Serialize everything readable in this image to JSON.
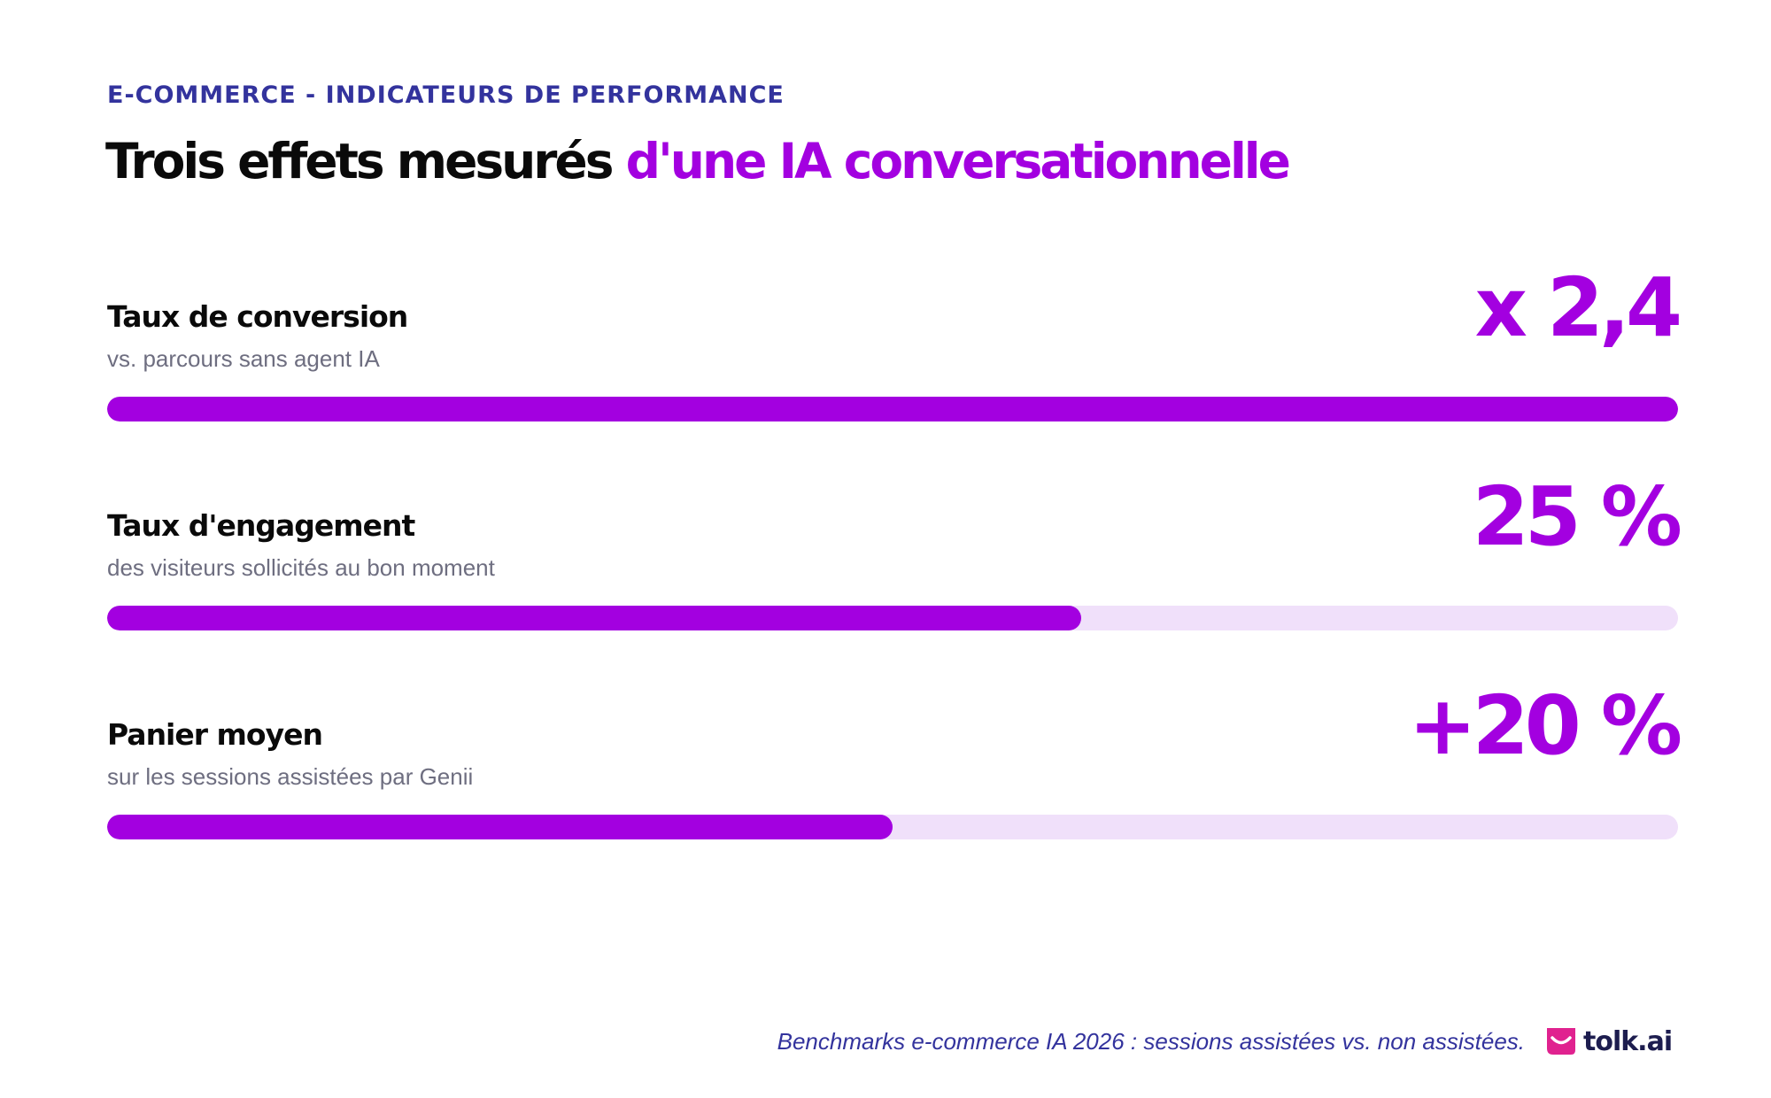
{
  "header": {
    "eyebrow": "E-COMMERCE - INDICATEURS DE PERFORMANCE",
    "title_main": "Trois effets mesurés",
    "title_accent": "d'une IA conversationnelle"
  },
  "chart_data": {
    "type": "bar",
    "orientation": "horizontal",
    "categories": [
      "Taux de conversion",
      "Taux d'engagement",
      "Panier moyen"
    ],
    "subtitles": [
      "vs. parcours sans agent IA",
      "des visiteurs sollicités au bon moment",
      "sur les sessions assistées par Genii"
    ],
    "value_labels": [
      "x 2,4",
      "25 %",
      "+20 %"
    ],
    "fill_fraction": [
      1.0,
      0.62,
      0.5
    ],
    "colors": {
      "fill": "#a300e0",
      "track": "#f0e0fa"
    },
    "grid": false,
    "legend": "none"
  },
  "footer": {
    "note": "Benchmarks e-commerce IA 2026 : sessions assistées vs. non assistées.",
    "logo_text": "tolk.ai",
    "logo_icon": "tolk-smile-logo-icon"
  }
}
